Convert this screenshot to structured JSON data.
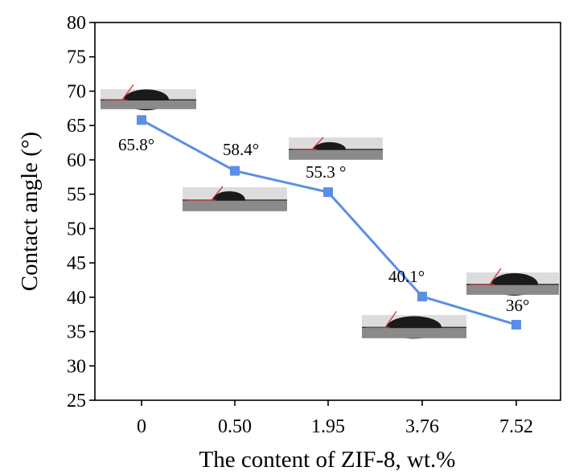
{
  "chart_data": {
    "type": "line",
    "categories": [
      "0",
      "0.50",
      "1.95",
      "3.76",
      "7.52"
    ],
    "values": [
      65.8,
      58.4,
      55.3,
      40.1,
      36.0
    ],
    "data_labels": [
      "65.8°",
      "58.4°",
      "55.3 °",
      "40.1°",
      "36°"
    ],
    "xlabel": "The content of ZIF-8, wt.%",
    "ylabel": "Contact angle (°)",
    "ylim": [
      25,
      80
    ],
    "yticks": [
      25,
      30,
      35,
      40,
      45,
      50,
      55,
      60,
      65,
      70,
      75,
      80
    ],
    "grid": false,
    "line_color": "#5b8ee6",
    "marker": "square",
    "inset_images": "water-droplet contact-angle photographs, one per sample"
  }
}
